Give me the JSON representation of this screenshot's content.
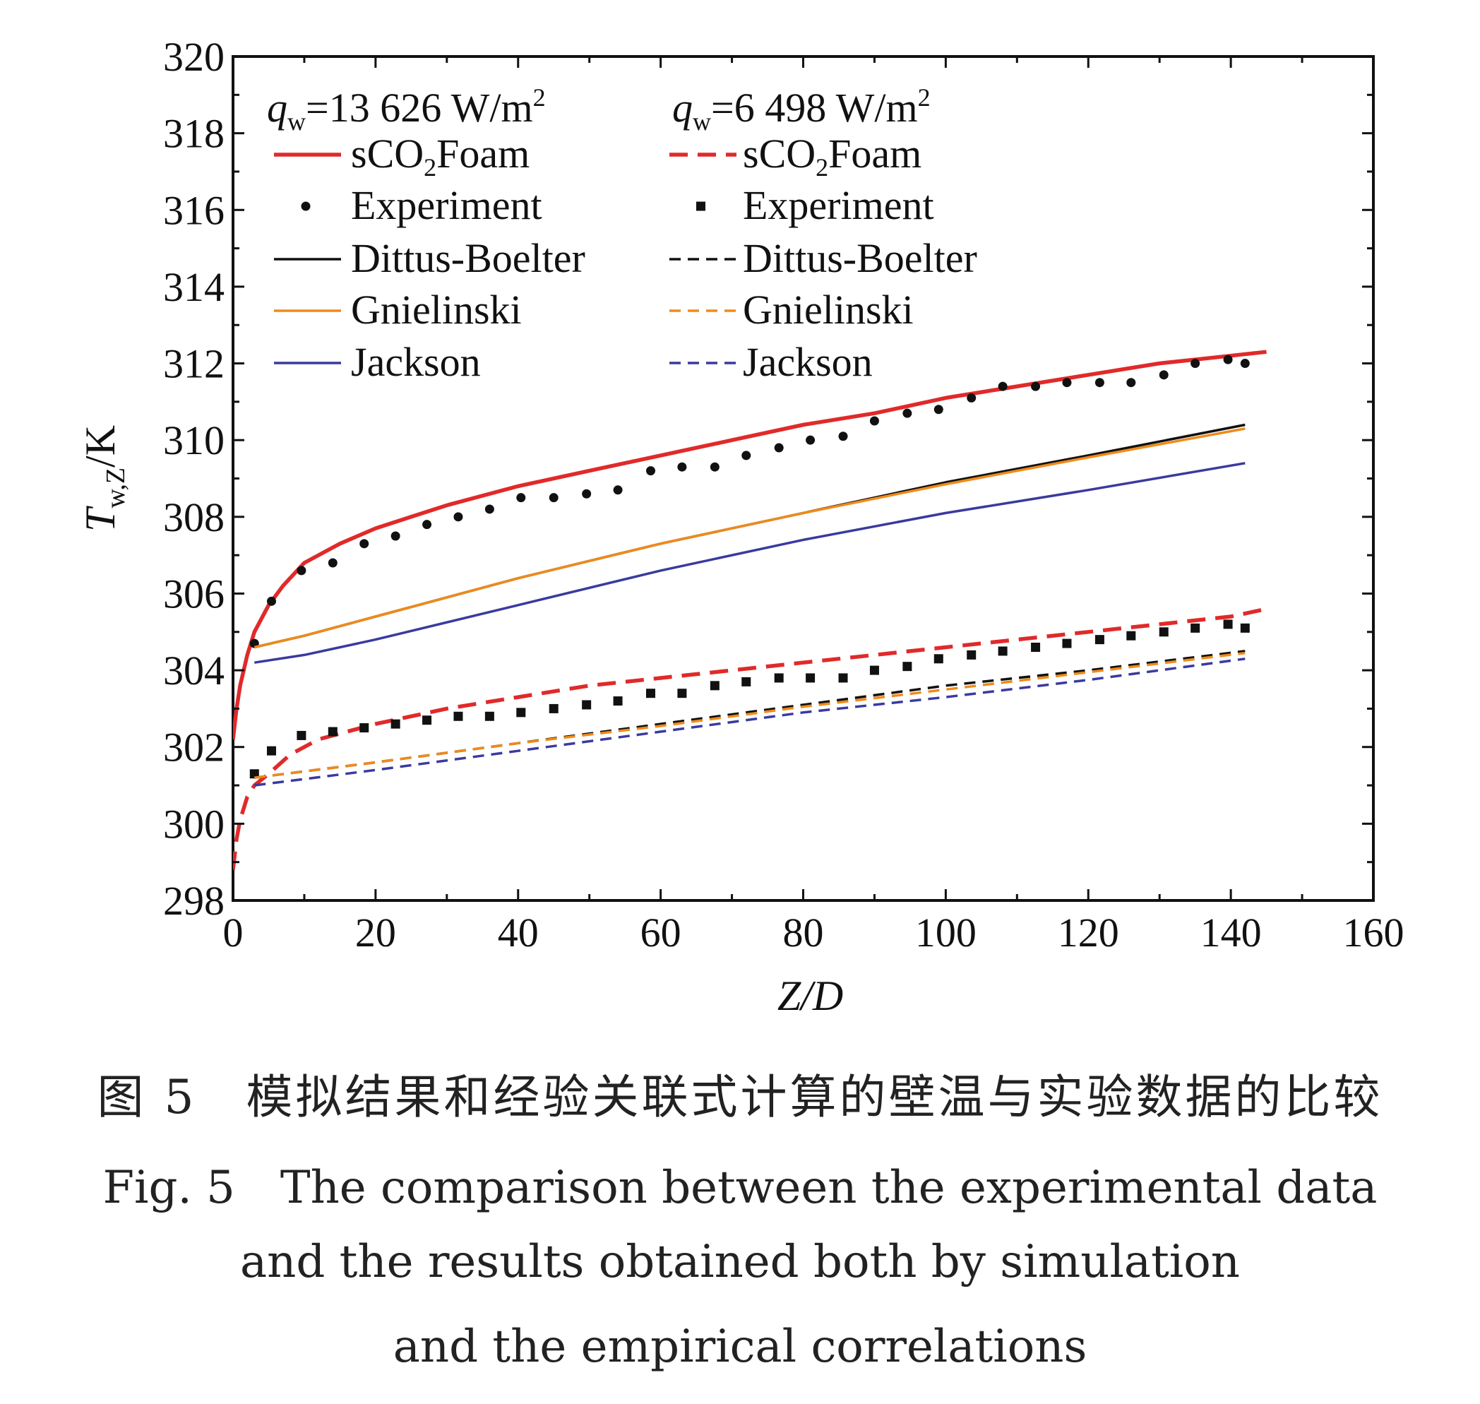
{
  "caption": {
    "zh": "图 5　模拟结果和经验关联式计算的壁温与实验数据的比较",
    "en_line1": "Fig. 5　The comparison between the experimental data",
    "en_line2": "and the results obtained both by simulation",
    "en_line3": "and the empirical correlations"
  },
  "chart_data": {
    "type": "line",
    "title": "",
    "xlabel": "Z/D",
    "ylabel": "T_w,Z/K",
    "xlim": [
      0,
      160
    ],
    "ylim": [
      298,
      320
    ],
    "xticks": [
      0,
      20,
      40,
      60,
      80,
      100,
      120,
      140,
      160
    ],
    "yticks": [
      298,
      300,
      302,
      304,
      306,
      308,
      310,
      312,
      314,
      316,
      318,
      320
    ],
    "grid": false,
    "legend_position": "top-left, two columns",
    "legend_groups": [
      {
        "header": "q_w=13 626 W/m²",
        "hq": "q",
        "hsub": "w",
        "htext": "=13 626 W/m",
        "hsup": "2"
      },
      {
        "header": "q_w=6 498 W/m²",
        "hq": "q",
        "hsub": "w",
        "htext": "=6 498 W/m",
        "hsup": "2"
      }
    ],
    "legend_labels": {
      "sco2_prefix": "sCO",
      "sco2_sub": "2",
      "sco2_suffix": "Foam",
      "experiment": "Experiment",
      "dittus": "Dittus-Boelter",
      "gnielinski": "Gnielinski",
      "jackson": "Jackson"
    },
    "colors": {
      "sCO2Foam": "#e02a2a",
      "Experiment": "#111111",
      "Dittus-Boelter": "#111111",
      "Gnielinski": "#f08a1a",
      "Jackson": "#3a3aa0"
    },
    "series": [
      {
        "name": "sCO2Foam",
        "group": 0,
        "style": "solid",
        "color": "#e02a2a",
        "x": [
          0,
          0.5,
          1,
          2,
          3,
          5,
          7,
          10,
          15,
          20,
          25,
          30,
          40,
          50,
          60,
          70,
          80,
          90,
          100,
          110,
          120,
          130,
          140,
          145
        ],
        "y": [
          302.2,
          303.0,
          303.6,
          304.4,
          305.0,
          305.7,
          306.2,
          306.8,
          307.3,
          307.7,
          308.0,
          308.3,
          308.8,
          309.2,
          309.6,
          310.0,
          310.4,
          310.7,
          311.1,
          311.4,
          311.7,
          312.0,
          312.2,
          312.3
        ]
      },
      {
        "name": "Experiment",
        "group": 0,
        "style": "dots",
        "color": "#111111",
        "x": [
          3,
          5.4,
          9.6,
          14,
          18.4,
          22.8,
          27.2,
          31.6,
          36,
          40.4,
          45,
          49.6,
          54,
          58.6,
          63,
          67.6,
          72,
          76.6,
          81,
          85.6,
          90,
          94.6,
          99,
          103.6,
          108,
          112.6,
          117,
          121.6,
          126,
          130.6,
          135,
          139.6,
          142
        ],
        "y": [
          304.7,
          305.8,
          306.6,
          306.8,
          307.3,
          307.5,
          307.8,
          308.0,
          308.2,
          308.5,
          308.5,
          308.6,
          308.7,
          309.2,
          309.3,
          309.3,
          309.6,
          309.8,
          310.0,
          310.1,
          310.5,
          310.7,
          310.8,
          311.1,
          311.4,
          311.4,
          311.5,
          311.5,
          311.5,
          311.7,
          312.0,
          312.1,
          312.0
        ]
      },
      {
        "name": "Dittus-Boelter",
        "group": 0,
        "style": "solid",
        "color": "#111111",
        "x": [
          3,
          10,
          20,
          40,
          60,
          80,
          100,
          120,
          142
        ],
        "y": [
          304.6,
          304.9,
          305.4,
          306.4,
          307.3,
          308.1,
          308.9,
          309.6,
          310.4
        ]
      },
      {
        "name": "Gnielinski",
        "group": 0,
        "style": "solid",
        "color": "#f08a1a",
        "x": [
          3,
          10,
          20,
          40,
          60,
          80,
          100,
          120,
          142
        ],
        "y": [
          304.6,
          304.9,
          305.4,
          306.4,
          307.3,
          308.1,
          308.85,
          309.55,
          310.3
        ]
      },
      {
        "name": "Jackson",
        "group": 0,
        "style": "solid",
        "color": "#3a3aa0",
        "x": [
          3,
          10,
          20,
          40,
          60,
          80,
          100,
          120,
          142
        ],
        "y": [
          304.2,
          304.4,
          304.8,
          305.7,
          306.6,
          307.4,
          308.1,
          308.7,
          309.4
        ]
      },
      {
        "name": "sCO2Foam",
        "group": 1,
        "style": "dashed",
        "color": "#e02a2a",
        "x": [
          0,
          0.5,
          1,
          2,
          3,
          5,
          8,
          12,
          20,
          30,
          40,
          50,
          60,
          70,
          80,
          90,
          100,
          110,
          120,
          130,
          140,
          145
        ],
        "y": [
          298.8,
          299.6,
          300.1,
          300.7,
          301.0,
          301.3,
          301.8,
          302.2,
          302.6,
          303.0,
          303.3,
          303.6,
          303.8,
          304.0,
          304.2,
          304.4,
          304.6,
          304.8,
          305.0,
          305.2,
          305.4,
          305.6
        ]
      },
      {
        "name": "Experiment",
        "group": 1,
        "style": "squares",
        "color": "#111111",
        "x": [
          3,
          5.4,
          9.6,
          14,
          18.4,
          22.8,
          27.2,
          31.6,
          36,
          40.4,
          45,
          49.6,
          54,
          58.6,
          63,
          67.6,
          72,
          76.6,
          81,
          85.6,
          90,
          94.6,
          99,
          103.6,
          108,
          112.6,
          117,
          121.6,
          126,
          130.6,
          135,
          139.6,
          142
        ],
        "y": [
          301.3,
          301.9,
          302.3,
          302.4,
          302.5,
          302.6,
          302.7,
          302.8,
          302.8,
          302.9,
          303.0,
          303.1,
          303.2,
          303.4,
          303.4,
          303.6,
          303.7,
          303.8,
          303.8,
          303.8,
          304.0,
          304.1,
          304.3,
          304.4,
          304.5,
          304.6,
          304.7,
          304.8,
          304.9,
          305.0,
          305.1,
          305.2,
          305.1
        ]
      },
      {
        "name": "Dittus-Boelter",
        "group": 1,
        "style": "dashed",
        "color": "#111111",
        "x": [
          3,
          20,
          40,
          60,
          80,
          100,
          120,
          142
        ],
        "y": [
          301.2,
          301.6,
          302.1,
          302.6,
          303.1,
          303.6,
          304.0,
          304.5
        ]
      },
      {
        "name": "Gnielinski",
        "group": 1,
        "style": "dashed",
        "color": "#f08a1a",
        "x": [
          3,
          20,
          40,
          60,
          80,
          100,
          120,
          142
        ],
        "y": [
          301.2,
          301.6,
          302.1,
          302.55,
          303.05,
          303.5,
          303.95,
          304.45
        ]
      },
      {
        "name": "Jackson",
        "group": 1,
        "style": "dashed",
        "color": "#3a3aa0",
        "x": [
          3,
          20,
          40,
          60,
          80,
          100,
          120,
          142
        ],
        "y": [
          301.0,
          301.4,
          301.9,
          302.4,
          302.9,
          303.3,
          303.75,
          304.3
        ]
      }
    ]
  }
}
